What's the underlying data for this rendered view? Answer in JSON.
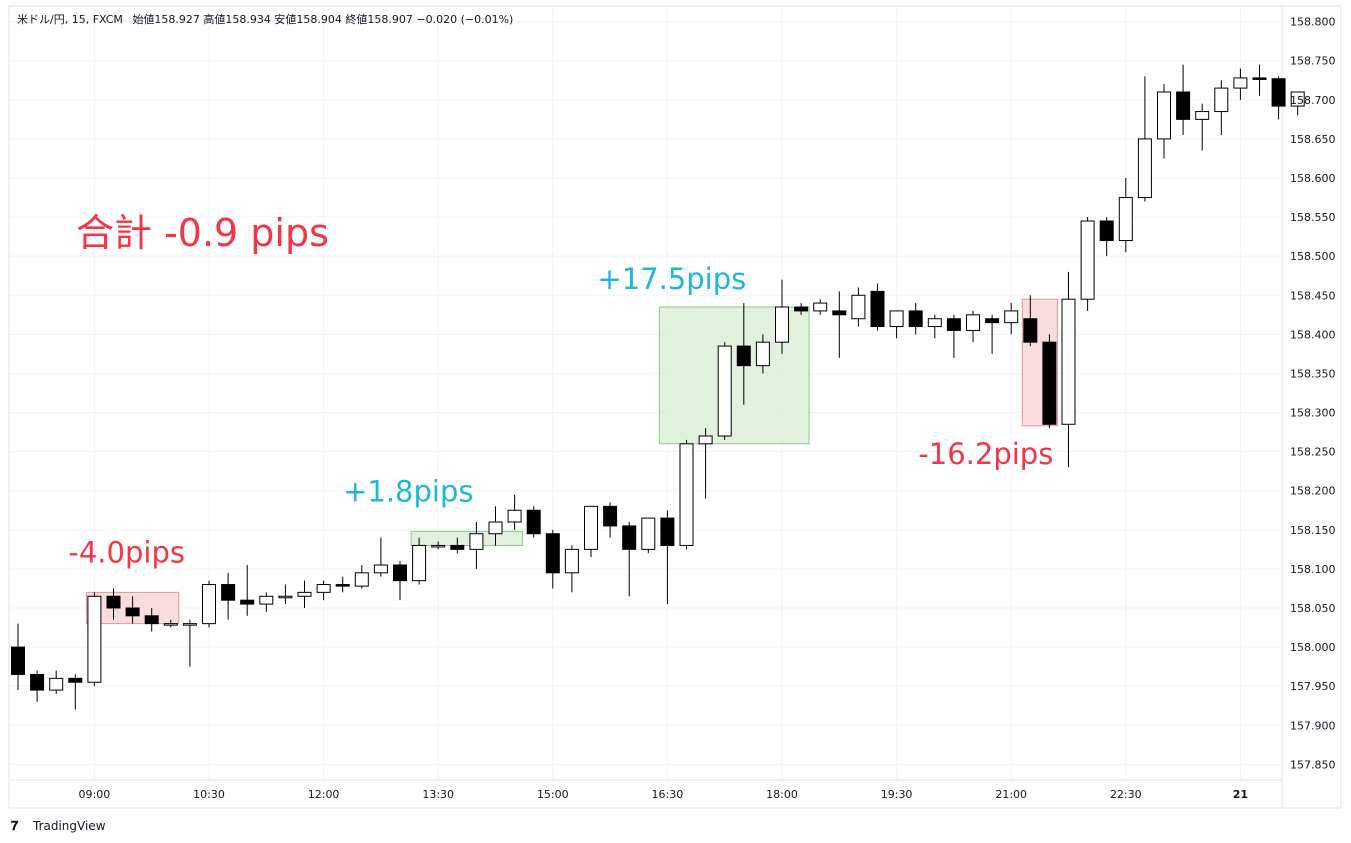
{
  "header": {
    "symbol": "米ドル/円, 15, FXCM",
    "ohlc": "始値158.927  高値158.934  安値158.904  終値158.907  −0.020 (−0.01%)"
  },
  "annotations": {
    "total": "合計 -0.9 pips",
    "trades": [
      {
        "label": "-4.0pips",
        "kind": "loss"
      },
      {
        "label": "+1.8pips",
        "kind": "win"
      },
      {
        "label": "+17.5pips",
        "kind": "win"
      },
      {
        "label": "-16.2pips",
        "kind": "loss"
      }
    ]
  },
  "brand": "TradingView",
  "colors": {
    "up_fill": "#ffffff",
    "down_fill": "#000000",
    "candle_outline": "#000000",
    "loss_text": "#f23645",
    "win_text": "#1fb7d6",
    "loss_box": "#f8d4d6",
    "win_box": "#d9eed6",
    "grid": "#f0f3fa"
  },
  "chart_data": {
    "type": "candlestick",
    "ylim": [
      157.83,
      158.82
    ],
    "yticks": [
      "158.800",
      "158.750",
      "158.700",
      "158.650",
      "158.600",
      "158.550",
      "158.500",
      "158.450",
      "158.400",
      "158.350",
      "158.300",
      "158.250",
      "158.200",
      "158.150",
      "158.100",
      "158.050",
      "158.000",
      "157.950",
      "157.900",
      "157.850"
    ],
    "xticks": [
      {
        "label": "09:00",
        "index": 4
      },
      {
        "label": "10:30",
        "index": 10
      },
      {
        "label": "12:00",
        "index": 16
      },
      {
        "label": "13:30",
        "index": 22
      },
      {
        "label": "15:00",
        "index": 28
      },
      {
        "label": "16:30",
        "index": 34
      },
      {
        "label": "18:00",
        "index": 40
      },
      {
        "label": "19:30",
        "index": 46
      },
      {
        "label": "21:00",
        "index": 52
      },
      {
        "label": "22:30",
        "index": 58
      },
      {
        "label": "21",
        "index": 64,
        "bold": true
      }
    ],
    "candles": [
      [
        158.0,
        158.03,
        157.945,
        157.965
      ],
      [
        157.965,
        157.97,
        157.93,
        157.945
      ],
      [
        157.945,
        157.97,
        157.94,
        157.96
      ],
      [
        157.96,
        157.965,
        157.92,
        157.955
      ],
      [
        157.955,
        158.07,
        157.95,
        158.065
      ],
      [
        158.065,
        158.075,
        158.035,
        158.05
      ],
      [
        158.05,
        158.065,
        158.03,
        158.04
      ],
      [
        158.04,
        158.05,
        158.02,
        158.03
      ],
      [
        158.03,
        158.035,
        158.025,
        158.03
      ],
      [
        158.03,
        158.035,
        157.975,
        158.03
      ],
      [
        158.03,
        158.085,
        158.025,
        158.08
      ],
      [
        158.08,
        158.095,
        158.035,
        158.06
      ],
      [
        158.06,
        158.105,
        158.04,
        158.055
      ],
      [
        158.055,
        158.07,
        158.045,
        158.065
      ],
      [
        158.065,
        158.08,
        158.055,
        158.065
      ],
      [
        158.065,
        158.085,
        158.05,
        158.07
      ],
      [
        158.07,
        158.085,
        158.06,
        158.08
      ],
      [
        158.08,
        158.09,
        158.07,
        158.078
      ],
      [
        158.078,
        158.105,
        158.075,
        158.095
      ],
      [
        158.095,
        158.14,
        158.09,
        158.105
      ],
      [
        158.105,
        158.11,
        158.06,
        158.085
      ],
      [
        158.085,
        158.14,
        158.08,
        158.13
      ],
      [
        158.13,
        158.135,
        158.125,
        158.13
      ],
      [
        158.13,
        158.14,
        158.12,
        158.125
      ],
      [
        158.125,
        158.16,
        158.1,
        158.145
      ],
      [
        158.145,
        158.18,
        158.13,
        158.16
      ],
      [
        158.16,
        158.195,
        158.15,
        158.175
      ],
      [
        158.175,
        158.18,
        158.14,
        158.145
      ],
      [
        158.145,
        158.15,
        158.075,
        158.095
      ],
      [
        158.095,
        158.13,
        158.07,
        158.125
      ],
      [
        158.125,
        158.18,
        158.115,
        158.18
      ],
      [
        158.18,
        158.185,
        158.14,
        158.155
      ],
      [
        158.155,
        158.16,
        158.065,
        158.125
      ],
      [
        158.125,
        158.165,
        158.12,
        158.165
      ],
      [
        158.165,
        158.175,
        158.055,
        158.13
      ],
      [
        158.13,
        158.265,
        158.125,
        158.26
      ],
      [
        158.26,
        158.28,
        158.19,
        158.27
      ],
      [
        158.27,
        158.39,
        158.265,
        158.385
      ],
      [
        158.385,
        158.44,
        158.31,
        158.36
      ],
      [
        158.36,
        158.4,
        158.35,
        158.39
      ],
      [
        158.39,
        158.47,
        158.375,
        158.435
      ],
      [
        158.435,
        158.44,
        158.425,
        158.43
      ],
      [
        158.43,
        158.445,
        158.425,
        158.44
      ],
      [
        158.43,
        158.455,
        158.37,
        158.425
      ],
      [
        158.42,
        158.46,
        158.41,
        158.45
      ],
      [
        158.455,
        158.465,
        158.405,
        158.41
      ],
      [
        158.41,
        158.43,
        158.395,
        158.43
      ],
      [
        158.43,
        158.44,
        158.4,
        158.41
      ],
      [
        158.41,
        158.425,
        158.395,
        158.42
      ],
      [
        158.42,
        158.425,
        158.37,
        158.405
      ],
      [
        158.405,
        158.43,
        158.39,
        158.425
      ],
      [
        158.42,
        158.425,
        158.375,
        158.415
      ],
      [
        158.415,
        158.44,
        158.4,
        158.43
      ],
      [
        158.42,
        158.45,
        158.385,
        158.39
      ],
      [
        158.39,
        158.4,
        158.28,
        158.285
      ],
      [
        158.285,
        158.48,
        158.23,
        158.445
      ],
      [
        158.445,
        158.55,
        158.43,
        158.545
      ],
      [
        158.545,
        158.55,
        158.5,
        158.52
      ],
      [
        158.52,
        158.6,
        158.505,
        158.575
      ],
      [
        158.575,
        158.73,
        158.57,
        158.65
      ],
      [
        158.65,
        158.72,
        158.625,
        158.71
      ],
      [
        158.71,
        158.745,
        158.655,
        158.675
      ],
      [
        158.675,
        158.695,
        158.635,
        158.685
      ],
      [
        158.685,
        158.725,
        158.655,
        158.715
      ],
      [
        158.715,
        158.74,
        158.7,
        158.728
      ],
      [
        158.728,
        158.745,
        158.705,
        158.727
      ],
      [
        158.727,
        158.73,
        158.675,
        158.692
      ],
      [
        158.692,
        158.71,
        158.68,
        158.71
      ]
    ],
    "trade_boxes": [
      {
        "kind": "loss",
        "from": 4,
        "to": 8,
        "entry": 158.07,
        "exit": 158.03,
        "label": 0
      },
      {
        "kind": "win",
        "from": 21,
        "to": 26,
        "entry": 158.13,
        "exit": 158.148,
        "label": 1
      },
      {
        "kind": "win",
        "from": 34,
        "to": 41,
        "entry": 158.26,
        "exit": 158.435,
        "label": 2
      },
      {
        "kind": "loss",
        "from": 53,
        "to": 54,
        "entry": 158.445,
        "exit": 158.283,
        "label": 3
      }
    ]
  }
}
